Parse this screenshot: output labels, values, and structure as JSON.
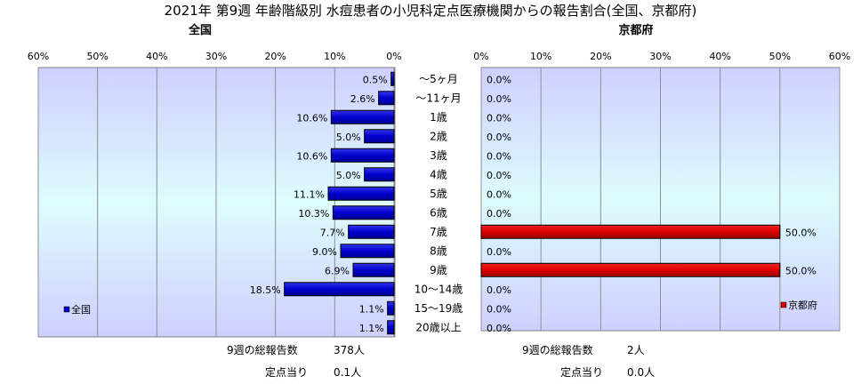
{
  "title": "2021年 第9週 年齢階級別 水痘患者の小児科定点医療機関からの報告割合(全国、京都府)",
  "colors": {
    "national_bar": "#0000CC",
    "kyoto_bar": "#DD0000",
    "bar_outline": "#000000"
  },
  "categories": [
    "〜5ヶ月",
    "〜11ヶ月",
    "1歳",
    "2歳",
    "3歳",
    "4歳",
    "5歳",
    "6歳",
    "7歳",
    "8歳",
    "9歳",
    "10〜14歳",
    "15〜19歳",
    "20歳以上"
  ],
  "chart_data": [
    {
      "type": "bar",
      "title": "全国",
      "orientation": "horizontal",
      "direction": "right-to-left",
      "categories": [
        "〜5ヶ月",
        "〜11ヶ月",
        "1歳",
        "2歳",
        "3歳",
        "4歳",
        "5歳",
        "6歳",
        "7歳",
        "8歳",
        "9歳",
        "10〜14歳",
        "15〜19歳",
        "20歳以上"
      ],
      "series": [
        {
          "name": "全国",
          "values": [
            0.5,
            2.6,
            10.6,
            5.0,
            10.6,
            5.0,
            11.1,
            10.3,
            7.7,
            9.0,
            6.9,
            18.5,
            1.1,
            1.1
          ]
        }
      ],
      "value_labels": [
        "0.5%",
        "2.6%",
        "10.6%",
        "5.0%",
        "10.6%",
        "5.0%",
        "11.1%",
        "10.3%",
        "7.7%",
        "9.0%",
        "6.9%",
        "18.5%",
        "1.1%",
        "1.1%"
      ],
      "xlim": [
        0,
        60
      ],
      "ticks": [
        "60%",
        "50%",
        "40%",
        "30%",
        "20%",
        "10%",
        "0%"
      ],
      "grid": true,
      "legend": "bottom-left"
    },
    {
      "type": "bar",
      "title": "京都府",
      "orientation": "horizontal",
      "direction": "left-to-right",
      "categories": [
        "〜5ヶ月",
        "〜11ヶ月",
        "1歳",
        "2歳",
        "3歳",
        "4歳",
        "5歳",
        "6歳",
        "7歳",
        "8歳",
        "9歳",
        "10〜14歳",
        "15〜19歳",
        "20歳以上"
      ],
      "series": [
        {
          "name": "京都府",
          "values": [
            0,
            0,
            0,
            0,
            0,
            0,
            0,
            0,
            50,
            0,
            50,
            0,
            0,
            0
          ]
        }
      ],
      "value_labels": [
        "0.0%",
        "0.0%",
        "0.0%",
        "0.0%",
        "0.0%",
        "0.0%",
        "0.0%",
        "0.0%",
        "50.0%",
        "0.0%",
        "50.0%",
        "0.0%",
        "0.0%",
        "0.0%"
      ],
      "xlim": [
        0,
        60
      ],
      "ticks": [
        "0%",
        "10%",
        "20%",
        "30%",
        "40%",
        "50%",
        "60%"
      ],
      "grid": true,
      "legend": "bottom-right"
    }
  ],
  "national": {
    "title": "全国",
    "legend": "全国",
    "total_label": "9週の総報告数",
    "total_value": "378人",
    "per_site_label": "定点当り",
    "per_site_value": "0.1人"
  },
  "kyoto": {
    "title": "京都府",
    "legend": "京都府",
    "total_label": "9週の総報告数",
    "total_value": "2人",
    "per_site_label": "定点当り",
    "per_site_value": "0.0人"
  }
}
